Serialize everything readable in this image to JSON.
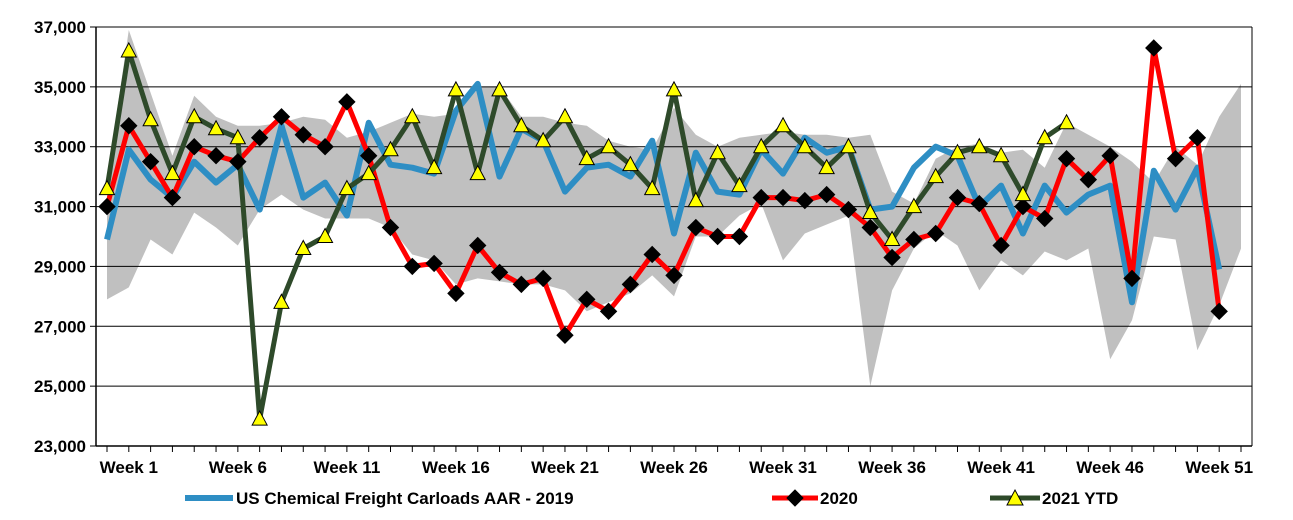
{
  "chart_data": {
    "type": "line",
    "title": "",
    "xlabel": "",
    "ylabel": "",
    "ylim": [
      23000,
      37000
    ],
    "yticks": [
      "23,000",
      "25,000",
      "27,000",
      "29,000",
      "31,000",
      "33,000",
      "35,000",
      "37,000"
    ],
    "ytick_values": [
      23000,
      25000,
      27000,
      29000,
      31000,
      33000,
      35000,
      37000
    ],
    "x": [
      1,
      2,
      3,
      4,
      5,
      6,
      7,
      8,
      9,
      10,
      11,
      12,
      13,
      14,
      15,
      16,
      17,
      18,
      19,
      20,
      21,
      22,
      23,
      24,
      25,
      26,
      27,
      28,
      29,
      30,
      31,
      32,
      33,
      34,
      35,
      36,
      37,
      38,
      39,
      40,
      41,
      42,
      43,
      44,
      45,
      46,
      47,
      48,
      49,
      50,
      51,
      52,
      53
    ],
    "xticks": [
      "Week 1",
      "Week 6",
      "Week 11",
      "Week 16",
      "Week 21",
      "Week 26",
      "Week 31",
      "Week 36",
      "Week 41",
      "Week 46",
      "Week 51"
    ],
    "xtick_values": [
      2,
      7,
      12,
      17,
      22,
      27,
      32,
      37,
      42,
      47,
      52
    ],
    "band": {
      "name": "range",
      "color": "#c0c0c0",
      "upper": [
        31900,
        36900,
        34800,
        32700,
        34700,
        34000,
        33700,
        33700,
        33800,
        34000,
        33900,
        33300,
        33500,
        33800,
        34100,
        34000,
        34100,
        35000,
        35000,
        34000,
        34000,
        33800,
        33700,
        33200,
        33000,
        32900,
        34300,
        33400,
        33000,
        33300,
        33400,
        33500,
        33400,
        33400,
        33300,
        33400,
        31500,
        31100,
        32600,
        33000,
        33100,
        32800,
        32900,
        32300,
        33800,
        33400,
        33000,
        32500,
        31800,
        33000,
        32400,
        34000,
        35100
      ],
      "lower": [
        27900,
        28300,
        29900,
        29400,
        30800,
        30300,
        29700,
        30900,
        31400,
        30900,
        30600,
        30600,
        30600,
        30300,
        29400,
        29200,
        28400,
        28600,
        28500,
        28400,
        28400,
        28200,
        27500,
        27800,
        28100,
        28700,
        28000,
        30000,
        30000,
        30700,
        31100,
        29200,
        30100,
        30400,
        30700,
        25000,
        28200,
        29600,
        30200,
        29700,
        28200,
        29200,
        28700,
        29500,
        29200,
        29600,
        25900,
        27200,
        30000,
        29900,
        26200,
        27700,
        29600
      ]
    },
    "series": [
      {
        "name": "US Chemical Freight Carloads AAR - 2019",
        "color": "#2e8ec4",
        "marker": "none",
        "values": [
          29900,
          32900,
          31900,
          31300,
          32500,
          31800,
          32400,
          30900,
          33700,
          31300,
          31800,
          30700,
          33800,
          32400,
          32300,
          32100,
          34200,
          35100,
          32000,
          33600,
          33200,
          31500,
          32300,
          32400,
          32000,
          33200,
          30100,
          32800,
          31500,
          31400,
          32900,
          32100,
          33300,
          32800,
          33000,
          30900,
          31000,
          32300,
          33000,
          32700,
          31000,
          31700,
          30100,
          31700,
          30800,
          31400,
          31700,
          27800,
          32200,
          30900,
          32300,
          28900,
          null
        ]
      },
      {
        "name": "2020",
        "color": "#ff0000",
        "marker": "diamond",
        "values": [
          31000,
          33700,
          32500,
          31300,
          33000,
          32700,
          32500,
          33300,
          34000,
          33400,
          33000,
          34500,
          32700,
          30300,
          29000,
          29100,
          28100,
          29700,
          28800,
          28400,
          28600,
          26700,
          27900,
          27500,
          28400,
          29400,
          28700,
          30300,
          30000,
          30000,
          31300,
          31300,
          31200,
          31400,
          30900,
          30300,
          29300,
          29900,
          30100,
          31300,
          31100,
          29700,
          31000,
          30600,
          32600,
          31900,
          32700,
          28600,
          36300,
          32600,
          33300,
          27500,
          null
        ]
      },
      {
        "name": "2021 YTD",
        "color": "#2e4a2a",
        "marker": "triangle",
        "values": [
          31600,
          36200,
          33900,
          32100,
          34000,
          33600,
          33300,
          23900,
          27800,
          29600,
          30000,
          31600,
          32100,
          32900,
          34000,
          32300,
          34900,
          32100,
          34900,
          33700,
          33200,
          34000,
          32600,
          33000,
          32400,
          31600,
          34900,
          31200,
          32800,
          31700,
          33000,
          33700,
          33000,
          32300,
          33000,
          30800,
          29900,
          31000,
          32000,
          32800,
          33000,
          32700,
          31400,
          33300,
          33800,
          null,
          null,
          null,
          null,
          null,
          null,
          null,
          null
        ]
      }
    ],
    "legend": {
      "placement": "bottom",
      "entries": [
        "US Chemical Freight Carloads AAR - 2019",
        "2020",
        "2021 YTD"
      ]
    },
    "grid": true
  }
}
